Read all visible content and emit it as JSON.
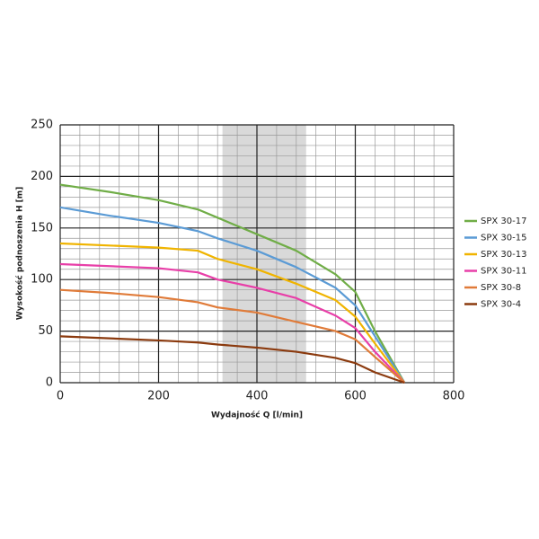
{
  "chart_data": {
    "type": "line",
    "x_label": "Wydajność Q [l/min]",
    "y_label": "Wysokość podnoszenia H [m]",
    "x": [
      0,
      100,
      200,
      280,
      320,
      400,
      480,
      560,
      600,
      640,
      700
    ],
    "series": [
      {
        "name": "SPX 30-17",
        "color": "#70ad47",
        "values": [
          192,
          185,
          177,
          168,
          160,
          144,
          128,
          105,
          88,
          50,
          0
        ]
      },
      {
        "name": "SPX 30-15",
        "color": "#5b9bd5",
        "values": [
          170,
          162,
          155,
          147,
          140,
          128,
          112,
          92,
          75,
          45,
          0
        ]
      },
      {
        "name": "SPX 30-13",
        "color": "#f0b400",
        "values": [
          135,
          133,
          131,
          128,
          120,
          110,
          96,
          80,
          64,
          38,
          0
        ]
      },
      {
        "name": "SPX 30-11",
        "color": "#e83fa8",
        "values": [
          115,
          113,
          111,
          107,
          100,
          92,
          82,
          65,
          53,
          30,
          0
        ]
      },
      {
        "name": "SPX 30-8",
        "color": "#e07b39",
        "values": [
          90,
          87,
          83,
          78,
          73,
          68,
          59,
          50,
          42,
          25,
          0
        ]
      },
      {
        "name": "SPX 30-4",
        "color": "#8b3a0e",
        "values": [
          45,
          43,
          41,
          39,
          37,
          34,
          30,
          24,
          19,
          10,
          0
        ]
      }
    ],
    "xlim": [
      0,
      800
    ],
    "xticks": [
      0,
      200,
      400,
      600,
      800
    ],
    "ylim": [
      0,
      250
    ],
    "yticks": [
      0,
      50,
      100,
      150,
      200,
      250
    ],
    "grid": true,
    "minor_divisions": [
      5,
      5
    ],
    "highlight_range": [
      330,
      500
    ],
    "legend": "right"
  }
}
